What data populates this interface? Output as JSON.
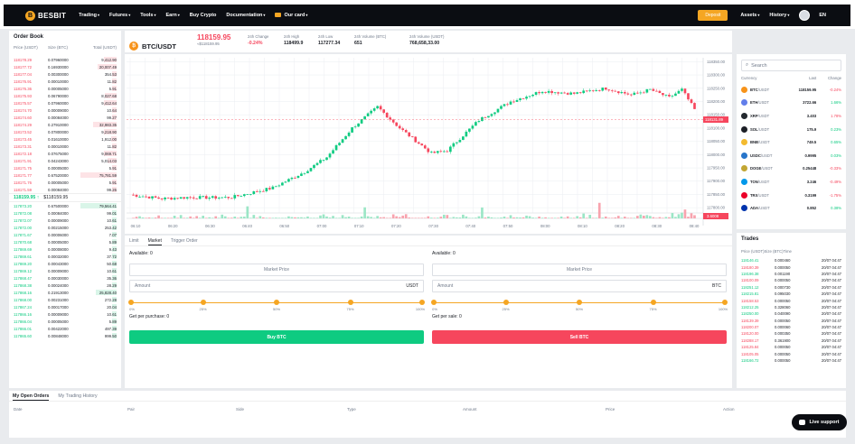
{
  "nav": {
    "brand": "BESBIT",
    "items": [
      {
        "label": "Trading"
      },
      {
        "label": "Futures"
      },
      {
        "label": "Tools"
      },
      {
        "label": "Earn"
      },
      {
        "label": "Buy Crypto"
      },
      {
        "label": "Documentation"
      }
    ],
    "card_label": "Our card",
    "deposit": "Deposit",
    "assets": "Assets",
    "history": "History",
    "lang": "EN"
  },
  "orderbook": {
    "title": "Order Book",
    "headers": [
      "Price (USDT)",
      "Size (BTC)",
      "Total (USDT)"
    ],
    "asks": [
      [
        "118178.29",
        "0.07960000",
        "9,412.90"
      ],
      [
        "118177.72",
        "0.16930000",
        "20,007.49"
      ],
      [
        "118177.04",
        "0.00300000",
        "354.53"
      ],
      [
        "118176.91",
        "0.00010000",
        "11.82"
      ],
      [
        "118176.36",
        "0.00005000",
        "5.91"
      ],
      [
        "118175.93",
        "0.06790000",
        "8,027.68"
      ],
      [
        "118175.57",
        "0.07960000",
        "9,412.64"
      ],
      [
        "118174.70",
        "0.00009000",
        "10.64"
      ],
      [
        "118174.60",
        "0.00084000",
        "99.27"
      ],
      [
        "118174.29",
        "0.27910000",
        "32,983.35"
      ],
      [
        "118173.52",
        "0.07800000",
        "9,218.90"
      ],
      [
        "118173.45",
        "0.01610000",
        "1,912.00"
      ],
      [
        "118173.31",
        "0.00010000",
        "11.82"
      ],
      [
        "118172.18",
        "0.07675000",
        "9,069.71"
      ],
      [
        "118171.91",
        "0.04243000",
        "5,014.03"
      ],
      [
        "118171.75",
        "0.00005000",
        "5.91"
      ],
      [
        "118171.77",
        "0.67520000",
        "75,781.59"
      ],
      [
        "118171.76",
        "0.00005000",
        "5.91"
      ],
      [
        "118171.59",
        "0.00084000",
        "99.26"
      ]
    ],
    "mid_price": "118159.95",
    "mid_arrow": "↑",
    "mid_usd": "$118159.95",
    "bids": [
      [
        "117873.20",
        "0.67500000",
        "79,564.41"
      ],
      [
        "117872.08",
        "0.00084000",
        "99.01"
      ],
      [
        "117872.07",
        "0.00009000",
        "10.61"
      ],
      [
        "117872.00",
        "0.00215000",
        "253.42"
      ],
      [
        "117871.67",
        "0.00006000",
        "7.07"
      ],
      [
        "117870.68",
        "0.00005000",
        "5.89"
      ],
      [
        "117869.69",
        "0.00008000",
        "9.43"
      ],
      [
        "117869.61",
        "0.00032000",
        "37.72"
      ],
      [
        "117869.20",
        "0.00043000",
        "50.68"
      ],
      [
        "117869.12",
        "0.00009000",
        "10.61"
      ],
      [
        "117868.47",
        "0.00030000",
        "35.36"
      ],
      [
        "117868.38",
        "0.00024000",
        "28.29"
      ],
      [
        "117868.16",
        "0.21913000",
        "25,828.40"
      ],
      [
        "117868.00",
        "0.00231000",
        "272.28"
      ],
      [
        "117867.24",
        "0.00017000",
        "20.04"
      ],
      [
        "117866.16",
        "0.00009000",
        "10.61"
      ],
      [
        "117866.04",
        "0.00005000",
        "5.89"
      ],
      [
        "117866.01",
        "0.00422000",
        "497.39"
      ],
      [
        "117865.60",
        "0.00848000",
        "999.50"
      ]
    ]
  },
  "ticker": {
    "symbol": "BTC/USDT",
    "last": "118159.95",
    "last_usd": "≈$118159.95",
    "stats": [
      {
        "label": "24h Change",
        "value": "-0.24%",
        "color": "#f6465d"
      },
      {
        "label": "24h High",
        "value": "118499.9",
        "color": "#1c1f26"
      },
      {
        "label": "24h Low",
        "value": "117277.34",
        "color": "#1c1f26"
      },
      {
        "label": "24h Volume (BTC)",
        "value": "651",
        "color": "#1c1f26"
      },
      {
        "label": "24h Volume (USDT)",
        "value": "768,658,33.00",
        "color": "#1c1f26"
      }
    ]
  },
  "chart_data": {
    "type": "candlestick",
    "x_ticks": [
      "06:10",
      "06:20",
      "06:30",
      "06:40",
      "06:50",
      "07:00",
      "07:10",
      "07:20",
      "07:30",
      "07:40",
      "07:50",
      "08:00",
      "08:10",
      "08:20",
      "08:30",
      "08:40"
    ],
    "y_ticks": [
      "118350.00",
      "118300.00",
      "118250.00",
      "118200.00",
      "118150.00",
      "118100.00",
      "118050.00",
      "118000.00",
      "117950.00",
      "117900.00",
      "117850.00",
      "117800.00"
    ],
    "y_range": [
      117780,
      118365
    ],
    "price_tag": "118131.89",
    "vol_tag": "3.6008",
    "waypoints": [
      [
        0,
        117849
      ],
      [
        10,
        117834
      ],
      [
        18,
        117839
      ],
      [
        26,
        117838
      ],
      [
        32,
        117839
      ],
      [
        45,
        117875
      ],
      [
        55,
        117935
      ],
      [
        62,
        117990
      ],
      [
        70,
        118100
      ],
      [
        78,
        118180
      ],
      [
        85,
        118100
      ],
      [
        95,
        118005
      ],
      [
        100,
        118015
      ],
      [
        110,
        118130
      ],
      [
        120,
        118200
      ],
      [
        130,
        118240
      ],
      [
        140,
        118230
      ],
      [
        150,
        118250
      ],
      [
        158,
        118225
      ],
      [
        164,
        118245
      ],
      [
        170,
        118215
      ],
      [
        174,
        118245
      ],
      [
        178,
        118170
      ]
    ]
  },
  "trade": {
    "tabs": [
      "Limit",
      "Market",
      "Trigger Order"
    ],
    "available_label": "Available: 0",
    "market_price": "Market Price",
    "amount_placeholder": "Amount",
    "buy_unit": "USDT",
    "sell_unit": "BTC",
    "slider_labels": [
      "0%",
      "25%",
      "50%",
      "75%",
      "100%"
    ],
    "get_purchase": "Get per purchase: 0",
    "get_sale": "Get per sale: 0",
    "buy_label": "Buy BTC",
    "sell_label": "Sell BTC",
    "buy_color": "#0ecb81",
    "sell_color": "#f6465d"
  },
  "markets": {
    "search_placeholder": "Search",
    "headers": [
      "Currency",
      "Last",
      "Change"
    ],
    "rows": [
      {
        "sym": "BTC",
        "quote": "/USDT",
        "last": "118159.95",
        "chg": "-0.24%",
        "color": "#f6465d",
        "icon": "#f7931a"
      },
      {
        "sym": "ETH",
        "quote": "/USDT",
        "last": "3722.66",
        "chg": "1.66%",
        "color": "#0ecb81",
        "icon": "#627eea"
      },
      {
        "sym": "XRP",
        "quote": "/USDT",
        "last": "3.403",
        "chg": "1.78%",
        "color": "#f6465d",
        "icon": "#23292f"
      },
      {
        "sym": "SOL",
        "quote": "/USDT",
        "last": "175.9",
        "chg": "0.23%",
        "color": "#0ecb81",
        "icon": "#1c1f26"
      },
      {
        "sym": "BNB",
        "quote": "/USDT",
        "last": "749.5",
        "chg": "0.65%",
        "color": "#0ecb81",
        "icon": "#f3ba2f"
      },
      {
        "sym": "USDC",
        "quote": "/USDT",
        "last": "0.9995",
        "chg": "0.03%",
        "color": "#0ecb81",
        "icon": "#2775ca"
      },
      {
        "sym": "DOGE",
        "quote": "/USDT",
        "last": "0.25448",
        "chg": "-0.33%",
        "color": "#f6465d",
        "icon": "#c2a633"
      },
      {
        "sym": "TON",
        "quote": "/USDT",
        "last": "3.246",
        "chg": "-0.49%",
        "color": "#f6465d",
        "icon": "#0098ea"
      },
      {
        "sym": "TRX",
        "quote": "/USDT",
        "last": "0.3199",
        "chg": "-1.75%",
        "color": "#f6465d",
        "icon": "#eb0029"
      },
      {
        "sym": "ADA",
        "quote": "/USDT",
        "last": "0.852",
        "chg": "0.38%",
        "color": "#0ecb81",
        "icon": "#0033ad"
      }
    ]
  },
  "trades": {
    "title": "Trades",
    "headers": [
      "Price (USDT)",
      "Size (BTC)",
      "Time"
    ],
    "rows": [
      [
        "118146.41",
        "0.000460",
        "20/07 04:47",
        "#0ecb81"
      ],
      [
        "118180.39",
        "0.000050",
        "20/07 04:47",
        "#f6465d"
      ],
      [
        "118196.38",
        "0.001190",
        "20/07 04:47",
        "#0ecb81"
      ],
      [
        "118100.09",
        "0.000050",
        "20/07 04:47",
        "#f6465d"
      ],
      [
        "118251.12",
        "0.000730",
        "20/07 04:47",
        "#0ecb81"
      ],
      [
        "118215.81",
        "0.095030",
        "20/07 04:47",
        "#0ecb81"
      ],
      [
        "118158.53",
        "0.000050",
        "20/07 04:47",
        "#f6465d"
      ],
      [
        "118212.25",
        "0.328060",
        "20/07 04:47",
        "#0ecb81"
      ],
      [
        "118250.00",
        "0.040090",
        "20/07 04:47",
        "#0ecb81"
      ],
      [
        "118139.39",
        "0.000050",
        "20/07 04:47",
        "#f6465d"
      ],
      [
        "118200.07",
        "0.000060",
        "20/07 04:47",
        "#f6465d"
      ],
      [
        "118120.00",
        "0.000350",
        "20/07 04:47",
        "#f6465d"
      ],
      [
        "118288.17",
        "0.361900",
        "20/07 04:47",
        "#f6465d"
      ],
      [
        "118125.84",
        "0.000050",
        "20/07 04:47",
        "#f6465d"
      ],
      [
        "118105.05",
        "0.000050",
        "20/07 04:47",
        "#f6465d"
      ],
      [
        "118166.72",
        "0.000050",
        "20/07 04:47",
        "#0ecb81"
      ]
    ]
  },
  "orders": {
    "tabs": [
      "My Open Orders",
      "My Trading History"
    ],
    "columns": [
      "Date",
      "Pair",
      "Side",
      "Type",
      "Amount",
      "Price",
      "Action"
    ]
  },
  "support": {
    "label": "Live support"
  }
}
